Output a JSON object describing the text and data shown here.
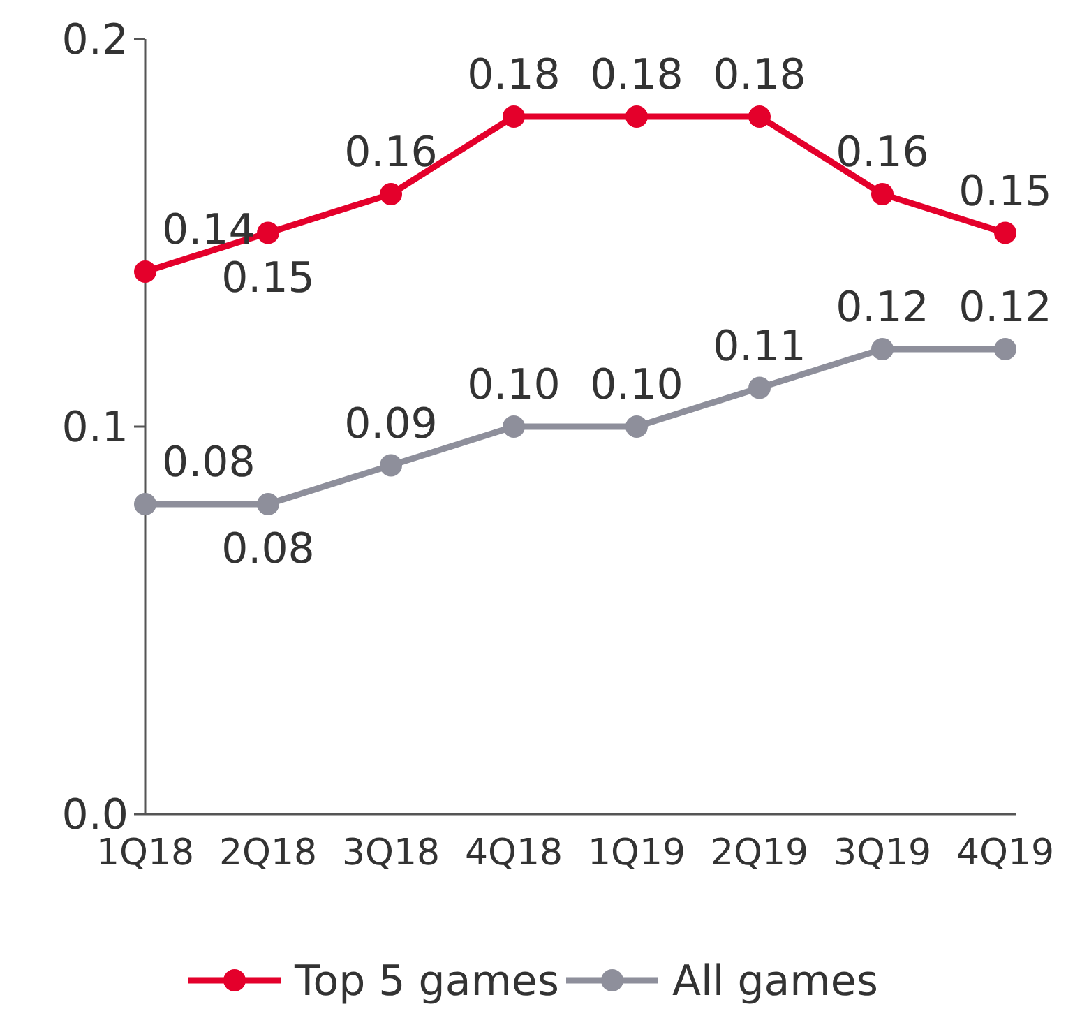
{
  "chart_data": {
    "type": "line",
    "categories": [
      "1Q18",
      "2Q18",
      "3Q18",
      "4Q18",
      "1Q19",
      "2Q19",
      "3Q19",
      "4Q19"
    ],
    "series": [
      {
        "name": "Top 5 games",
        "color": "#e4002b",
        "values": [
          0.14,
          0.15,
          0.16,
          0.18,
          0.18,
          0.18,
          0.16,
          0.15
        ],
        "value_labels": [
          "0.14",
          "0.15",
          "0.16",
          "0.18",
          "0.18",
          "0.18",
          "0.16",
          "0.15"
        ]
      },
      {
        "name": "All games",
        "color": "#8e8f9b",
        "values": [
          0.08,
          0.08,
          0.09,
          0.1,
          0.1,
          0.11,
          0.12,
          0.12
        ],
        "value_labels": [
          "0.08",
          "0.08",
          "0.09",
          "0.10",
          "0.10",
          "0.11",
          "0.12",
          "0.12"
        ]
      }
    ],
    "ylim": [
      0,
      0.2
    ],
    "yticks": [
      {
        "value": 0,
        "label": "0.0"
      },
      0.1,
      0.2
    ],
    "grid": false,
    "legend": "bottom",
    "marker": "circle",
    "line_style": "solid"
  }
}
